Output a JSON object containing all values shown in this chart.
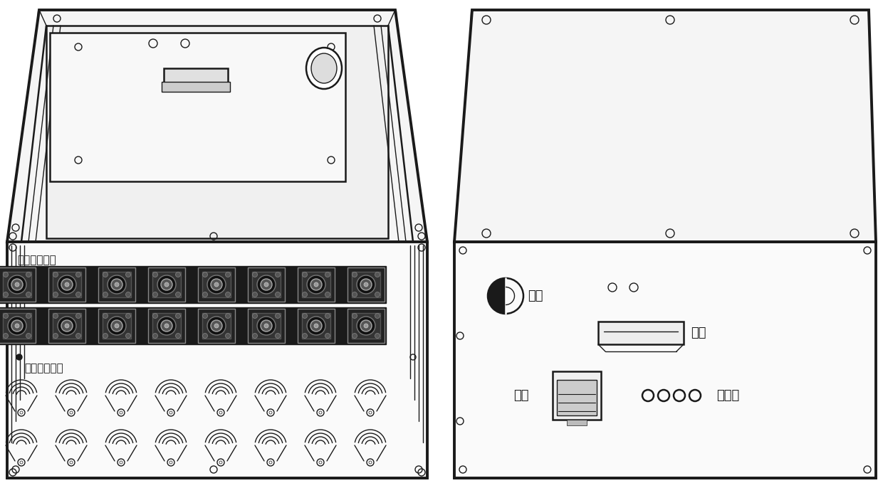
{
  "bg_color": "#ffffff",
  "lc": "#1a1a1a",
  "lw_thin": 1.0,
  "lw_med": 1.8,
  "lw_thick": 2.8,
  "label_single_mode": "单模光纤接口",
  "label_multi_mode": "多模光纤接口",
  "label_power": "电源",
  "label_serial": "串口",
  "label_network": "网口",
  "label_indicator": "指示灯",
  "font_cn": "SimHei"
}
